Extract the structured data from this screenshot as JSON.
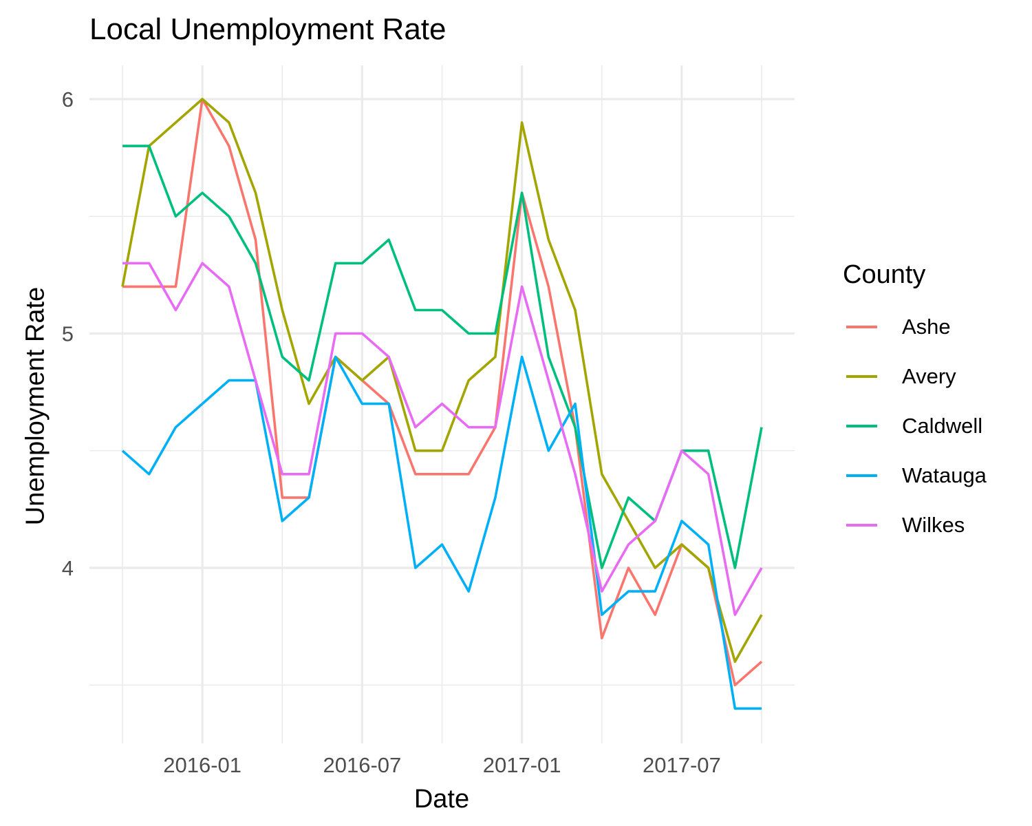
{
  "chart_data": {
    "type": "line",
    "title": "Local Unemployment Rate",
    "xlabel": "Date",
    "ylabel": "Unemployment Rate",
    "legend_title": "County",
    "legend_position": "right",
    "grid": true,
    "x_ticks": [
      "2016-01",
      "2016-07",
      "2017-01",
      "2017-07"
    ],
    "y_ticks": [
      4,
      5,
      6
    ],
    "ylim": [
      3.3,
      6.25
    ],
    "x": [
      "2015-10",
      "2015-11",
      "2015-12",
      "2016-01",
      "2016-02",
      "2016-03",
      "2016-04",
      "2016-05",
      "2016-06",
      "2016-07",
      "2016-08",
      "2016-09",
      "2016-10",
      "2016-11",
      "2016-12",
      "2017-01",
      "2017-02",
      "2017-03",
      "2017-04",
      "2017-05",
      "2017-06",
      "2017-07",
      "2017-08",
      "2017-09",
      "2017-10"
    ],
    "series": [
      {
        "name": "Ashe",
        "color": "#F8766D",
        "values": [
          5.2,
          5.2,
          5.2,
          6.0,
          5.8,
          5.4,
          4.3,
          4.3,
          4.9,
          4.8,
          4.7,
          4.4,
          4.4,
          4.4,
          4.6,
          5.6,
          5.2,
          4.6,
          3.7,
          4.0,
          3.8,
          4.1,
          4.0,
          3.5,
          3.6
        ]
      },
      {
        "name": "Avery",
        "color": "#A3A500",
        "values": [
          5.2,
          5.8,
          5.9,
          6.0,
          5.9,
          5.6,
          5.1,
          4.7,
          4.9,
          4.8,
          4.9,
          4.5,
          4.5,
          4.8,
          4.9,
          5.9,
          5.4,
          5.1,
          4.4,
          4.2,
          4.0,
          4.1,
          4.0,
          3.6,
          3.8
        ]
      },
      {
        "name": "Caldwell",
        "color": "#00BF7D",
        "values": [
          5.8,
          5.8,
          5.5,
          5.6,
          5.5,
          5.3,
          4.9,
          4.8,
          5.3,
          5.3,
          5.4,
          5.1,
          5.1,
          5.0,
          5.0,
          5.6,
          4.9,
          4.6,
          4.0,
          4.3,
          4.2,
          4.5,
          4.5,
          4.0,
          4.6
        ]
      },
      {
        "name": "Watauga",
        "color": "#00B0F6",
        "values": [
          4.5,
          4.4,
          4.6,
          4.7,
          4.8,
          4.8,
          4.2,
          4.3,
          4.9,
          4.7,
          4.7,
          4.0,
          4.1,
          3.9,
          4.3,
          4.9,
          4.5,
          4.7,
          3.8,
          3.9,
          3.9,
          4.2,
          4.1,
          3.4,
          3.4
        ]
      },
      {
        "name": "Wilkes",
        "color": "#E76BF3",
        "values": [
          5.3,
          5.3,
          5.1,
          5.3,
          5.2,
          4.8,
          4.4,
          4.4,
          5.0,
          5.0,
          4.9,
          4.6,
          4.7,
          4.6,
          4.6,
          5.2,
          4.8,
          4.4,
          3.9,
          4.1,
          4.2,
          4.5,
          4.4,
          3.8,
          4.0
        ]
      }
    ]
  }
}
